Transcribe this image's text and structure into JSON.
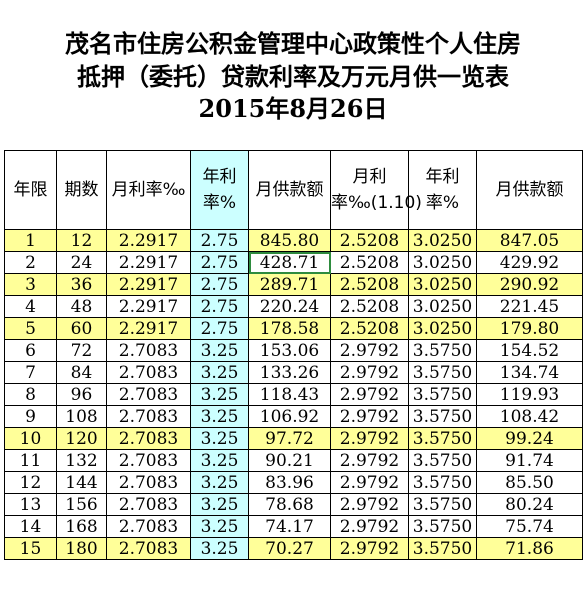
{
  "title": {
    "line1": "茂名市住房公积金管理中心政策性个人住房",
    "line2": "抵押（委托）贷款利率及万元月供一览表",
    "line3": "2015年8月26日"
  },
  "headers": [
    "年限",
    "期数",
    "月利率‰",
    "年利率%",
    "月供款额",
    "月利率‰(1.10)",
    "年利率%",
    "月供款额"
  ],
  "rows": [
    [
      "1",
      "12",
      "2.2917",
      "2.75",
      "845.80",
      "2.5208",
      "3.0250",
      "847.05"
    ],
    [
      "2",
      "24",
      "2.2917",
      "2.75",
      "428.71",
      "2.5208",
      "3.0250",
      "429.92"
    ],
    [
      "3",
      "36",
      "2.2917",
      "2.75",
      "289.71",
      "2.5208",
      "3.0250",
      "290.92"
    ],
    [
      "4",
      "48",
      "2.2917",
      "2.75",
      "220.24",
      "2.5208",
      "3.0250",
      "221.45"
    ],
    [
      "5",
      "60",
      "2.2917",
      "2.75",
      "178.58",
      "2.5208",
      "3.0250",
      "179.80"
    ],
    [
      "6",
      "72",
      "2.7083",
      "3.25",
      "153.06",
      "2.9792",
      "3.5750",
      "154.52"
    ],
    [
      "7",
      "84",
      "2.7083",
      "3.25",
      "133.26",
      "2.9792",
      "3.5750",
      "134.74"
    ],
    [
      "8",
      "96",
      "2.7083",
      "3.25",
      "118.43",
      "2.9792",
      "3.5750",
      "119.93"
    ],
    [
      "9",
      "108",
      "2.7083",
      "3.25",
      "106.92",
      "2.9792",
      "3.5750",
      "108.42"
    ],
    [
      "10",
      "120",
      "2.7083",
      "3.25",
      "97.72",
      "2.9792",
      "3.5750",
      "99.24"
    ],
    [
      "11",
      "132",
      "2.7083",
      "3.25",
      "90.21",
      "2.9792",
      "3.5750",
      "91.74"
    ],
    [
      "12",
      "144",
      "2.7083",
      "3.25",
      "83.96",
      "2.9792",
      "3.5750",
      "85.50"
    ],
    [
      "13",
      "156",
      "2.7083",
      "3.25",
      "78.68",
      "2.9792",
      "3.5750",
      "80.24"
    ],
    [
      "14",
      "168",
      "2.7083",
      "3.25",
      "74.17",
      "2.9792",
      "3.5750",
      "75.74"
    ],
    [
      "15",
      "180",
      "2.7083",
      "3.25",
      "70.27",
      "2.9792",
      "3.5750",
      "71.86"
    ]
  ],
  "highlight_rows": [
    1,
    3,
    5,
    10,
    15
  ],
  "colors": {
    "highlight": "#ffff99",
    "rate_column": "#ccffff",
    "selection": "#2e8b3e"
  }
}
